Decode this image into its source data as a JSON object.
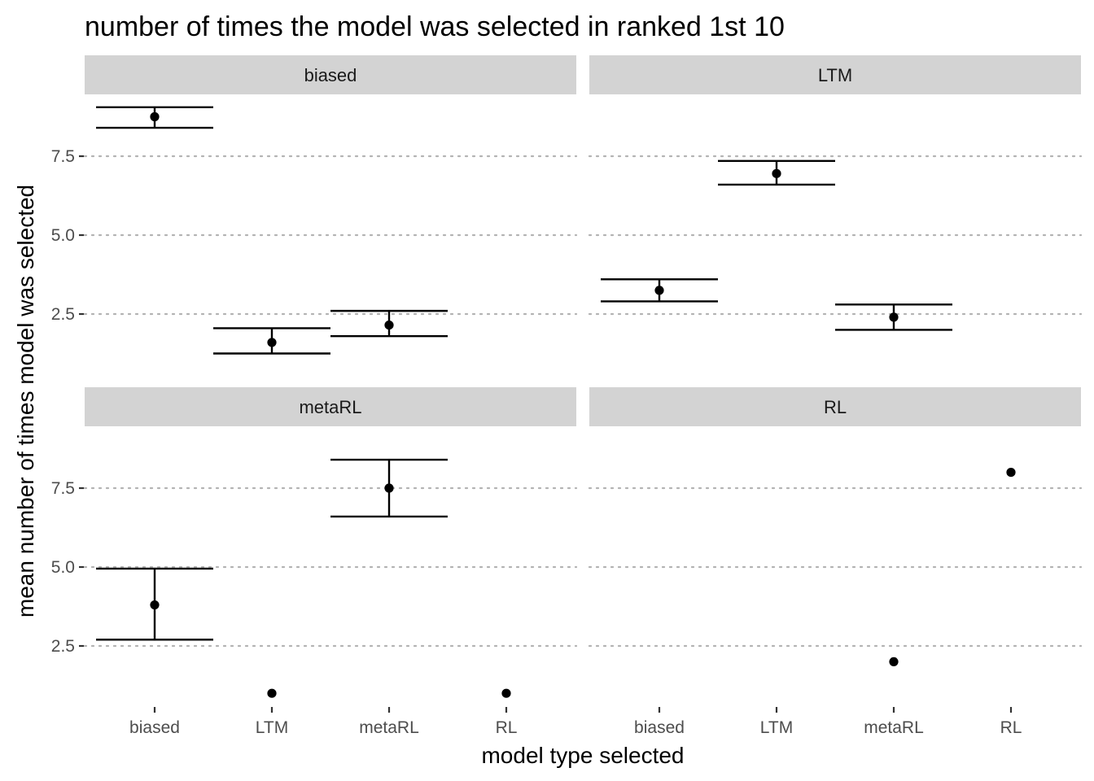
{
  "chart_data": {
    "type": "scatter",
    "title": "number of times the model was selected in ranked 1st 10",
    "xlabel": "model type selected",
    "ylabel": "mean number of times model was selected",
    "categories": [
      "biased",
      "LTM",
      "metaRL",
      "RL"
    ],
    "y_ticks": [
      "2.5",
      "5.0",
      "7.5"
    ],
    "ylim": [
      0.4,
      9.3
    ],
    "grid": "horizontal-major-dotted",
    "facets": [
      {
        "label": "biased",
        "points": [
          {
            "x": "biased",
            "y": 8.75,
            "ymin": 8.4,
            "ymax": 9.05
          },
          {
            "x": "LTM",
            "y": 1.6,
            "ymin": 1.25,
            "ymax": 2.05
          },
          {
            "x": "metaRL",
            "y": 2.15,
            "ymin": 1.8,
            "ymax": 2.6
          }
        ]
      },
      {
        "label": "LTM",
        "points": [
          {
            "x": "biased",
            "y": 3.25,
            "ymin": 2.9,
            "ymax": 3.6
          },
          {
            "x": "LTM",
            "y": 6.95,
            "ymin": 6.6,
            "ymax": 7.35
          },
          {
            "x": "metaRL",
            "y": 2.4,
            "ymin": 2.0,
            "ymax": 2.8
          }
        ]
      },
      {
        "label": "metaRL",
        "points": [
          {
            "x": "biased",
            "y": 3.8,
            "ymin": 2.7,
            "ymax": 4.95
          },
          {
            "x": "LTM",
            "y": 1.0
          },
          {
            "x": "metaRL",
            "y": 7.5,
            "ymin": 6.6,
            "ymax": 8.4
          },
          {
            "x": "RL",
            "y": 1.0
          }
        ]
      },
      {
        "label": "RL",
        "points": [
          {
            "x": "metaRL",
            "y": 2.0
          },
          {
            "x": "RL",
            "y": 8.0
          }
        ]
      }
    ]
  }
}
